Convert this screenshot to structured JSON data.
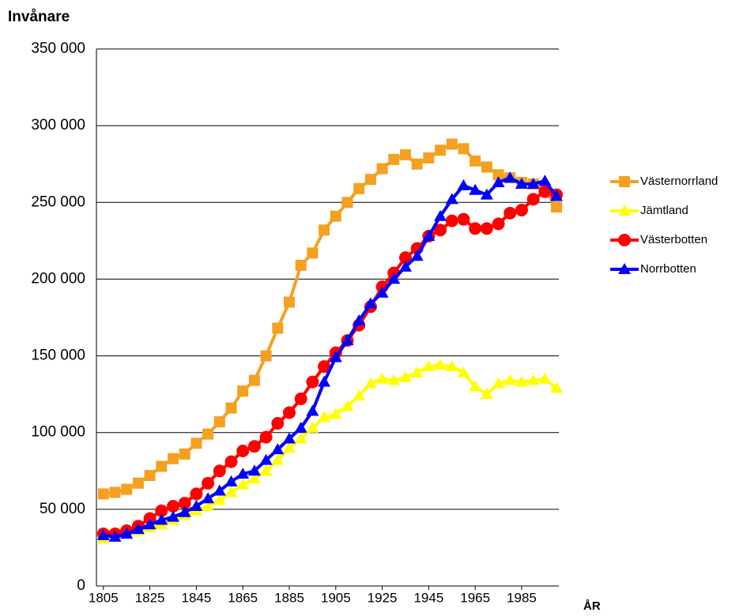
{
  "chart_data": {
    "type": "line",
    "ylabel": "Invånare",
    "xlabel": "ÅR",
    "x": [
      1805,
      1810,
      1815,
      1820,
      1825,
      1830,
      1835,
      1840,
      1845,
      1850,
      1855,
      1860,
      1865,
      1870,
      1875,
      1880,
      1885,
      1890,
      1895,
      1900,
      1905,
      1910,
      1915,
      1920,
      1925,
      1930,
      1935,
      1940,
      1945,
      1950,
      1955,
      1960,
      1965,
      1970,
      1975,
      1980,
      1985,
      1990,
      1995,
      2000
    ],
    "series": [
      {
        "name": "Västernorrland",
        "color": "#f5a020",
        "marker": "square",
        "values": [
          60000,
          61000,
          63000,
          67000,
          72000,
          78000,
          83000,
          86000,
          93000,
          99000,
          107000,
          116000,
          127000,
          134000,
          150000,
          168000,
          185000,
          209000,
          217000,
          232000,
          241000,
          250000,
          259000,
          265000,
          272000,
          278000,
          281000,
          275000,
          279000,
          284000,
          288000,
          285000,
          277000,
          273000,
          268000,
          266000,
          263000,
          262000,
          258000,
          247000
        ]
      },
      {
        "name": "Jämtland",
        "color": "#ffff00",
        "marker": "triangle",
        "values": [
          31000,
          32000,
          34000,
          36000,
          38000,
          40000,
          43000,
          46000,
          49000,
          52000,
          56000,
          61000,
          66000,
          70000,
          75000,
          82000,
          90000,
          96000,
          103000,
          110000,
          112000,
          117000,
          124000,
          132000,
          135000,
          134000,
          136000,
          139000,
          143000,
          144000,
          143000,
          139000,
          130000,
          125000,
          132000,
          134000,
          133000,
          134000,
          135000,
          129000
        ]
      },
      {
        "name": "Västerbotten",
        "color": "#ff0000",
        "marker": "circle",
        "values": [
          34000,
          34000,
          36000,
          39000,
          44000,
          49000,
          52000,
          54000,
          60000,
          67000,
          75000,
          81000,
          88000,
          91000,
          97000,
          106000,
          113000,
          122000,
          133000,
          143000,
          152000,
          160000,
          170000,
          182000,
          195000,
          204000,
          214000,
          220000,
          228000,
          232000,
          238000,
          239000,
          233000,
          233000,
          236000,
          243000,
          245000,
          252000,
          257000,
          255000
        ]
      },
      {
        "name": "Norrbotten",
        "color": "#0000ff",
        "marker": "triangle",
        "values": [
          33000,
          32000,
          34000,
          37000,
          40000,
          43000,
          45000,
          48000,
          52000,
          57000,
          62000,
          68000,
          73000,
          75000,
          82000,
          89000,
          96000,
          103000,
          114000,
          133000,
          149000,
          160000,
          173000,
          184000,
          191000,
          200000,
          208000,
          215000,
          228000,
          241000,
          252000,
          261000,
          258000,
          255000,
          263000,
          266000,
          262000,
          262000,
          264000,
          254000
        ]
      }
    ],
    "xlim": [
      1802,
      2001
    ],
    "xticks": [
      1805,
      1825,
      1845,
      1865,
      1885,
      1905,
      1925,
      1945,
      1965,
      1985
    ],
    "ylim": [
      0,
      350000
    ],
    "yticks": [
      {
        "value": 0,
        "label": "0"
      },
      {
        "value": 50000,
        "label": "50 000"
      },
      {
        "value": 100000,
        "label": "100 000"
      },
      {
        "value": 150000,
        "label": "150 000"
      },
      {
        "value": 200000,
        "label": "200 000"
      },
      {
        "value": 250000,
        "label": "250 000"
      },
      {
        "value": 300000,
        "label": "300 000"
      },
      {
        "value": 350000,
        "label": "350 000"
      }
    ],
    "grid": true,
    "legend": "right"
  }
}
